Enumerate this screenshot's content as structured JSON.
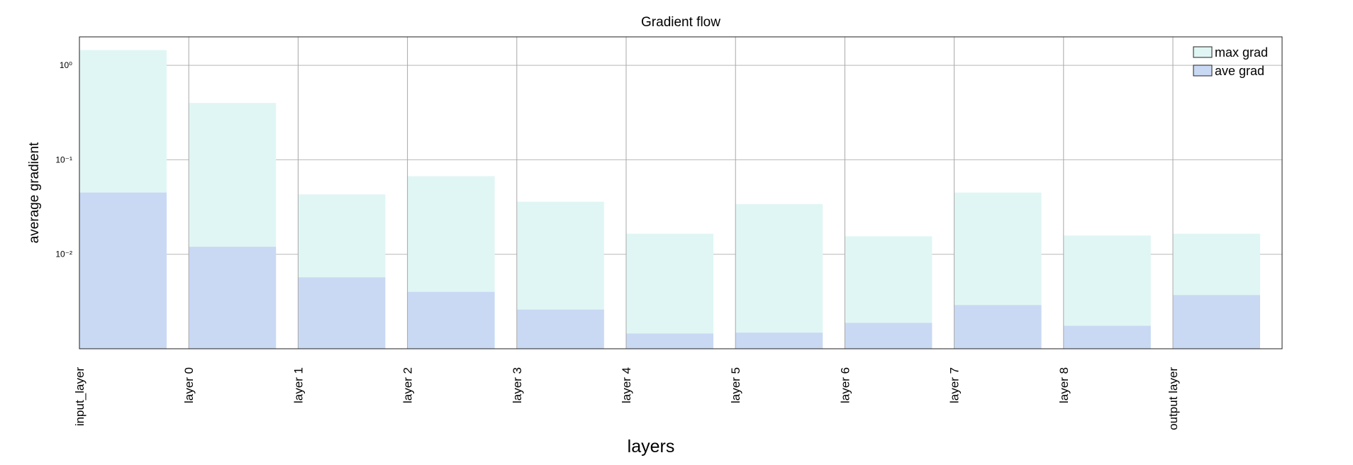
{
  "chart_data": {
    "type": "bar",
    "title": "Gradient flow",
    "xlabel": "layers",
    "ylabel": "average gradient",
    "yscale": "log",
    "ylim": [
      0.001,
      2
    ],
    "grid": true,
    "legend_position": "top-right",
    "categories": [
      "input_layer",
      "layer 0",
      "layer 1",
      "layer 2",
      "layer 3",
      "layer 4",
      "layer 5",
      "layer 6",
      "layer 7",
      "layer 8",
      "output layer"
    ],
    "y_ticks": [
      {
        "value": 1,
        "label": "10⁰"
      },
      {
        "value": 0.1,
        "label": "10⁻¹"
      },
      {
        "value": 0.01,
        "label": "10⁻²"
      }
    ],
    "series": [
      {
        "name": "max grad",
        "color": "#e0f6f4",
        "values": [
          1.45,
          0.4,
          0.043,
          0.067,
          0.036,
          0.0165,
          0.034,
          0.0155,
          0.045,
          0.0158,
          0.0165
        ]
      },
      {
        "name": "ave grad",
        "color": "#c9d9f4",
        "values": [
          0.045,
          0.012,
          0.0057,
          0.004,
          0.0026,
          0.00145,
          0.00148,
          0.00188,
          0.0029,
          0.00175,
          0.0037
        ]
      }
    ]
  }
}
